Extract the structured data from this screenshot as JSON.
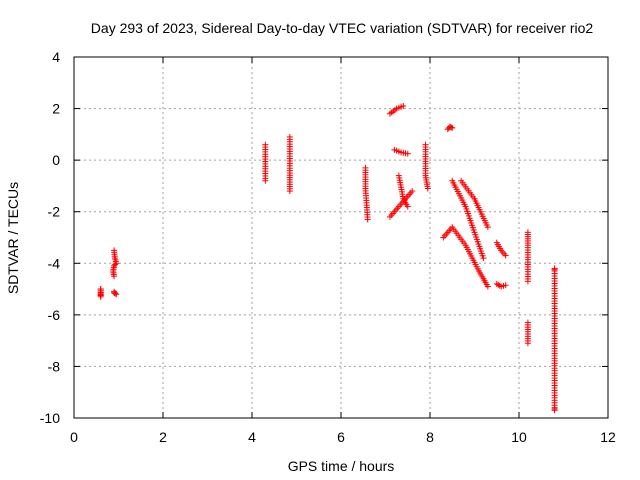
{
  "chart_data": {
    "type": "scatter",
    "title": "Day 293 of 2023, Sidereal Day-to-day VTEC variation (SDTVAR) for receiver rio2",
    "xlabel": "GPS time / hours",
    "ylabel": "SDTVAR / TECUs",
    "xlim": [
      0,
      12
    ],
    "ylim": [
      -10,
      4
    ],
    "x_ticks": [
      "0",
      "2",
      "4",
      "6",
      "8",
      "10",
      "12"
    ],
    "y_ticks": [
      "-10",
      "-8",
      "-6",
      "-4",
      "-2",
      "0",
      "2",
      "4"
    ],
    "grid": true,
    "legend": "none",
    "marker": "+",
    "color": "#ff0000",
    "segments": [
      {
        "name": "seg-01",
        "points": [
          [
            0.6,
            -5.0
          ],
          [
            0.6,
            -5.2
          ],
          [
            0.6,
            -5.3
          ],
          [
            0.6,
            -5.0
          ]
        ]
      },
      {
        "name": "seg-02",
        "points": [
          [
            0.9,
            -3.5
          ],
          [
            0.92,
            -3.8
          ],
          [
            0.95,
            -4.0
          ],
          [
            0.9,
            -4.1
          ],
          [
            0.88,
            -4.3
          ],
          [
            0.9,
            -4.5
          ]
        ]
      },
      {
        "name": "seg-03",
        "points": [
          [
            0.9,
            -5.1
          ],
          [
            0.95,
            -5.2
          ],
          [
            0.9,
            -5.15
          ]
        ]
      },
      {
        "name": "seg-04",
        "points": [
          [
            4.3,
            0.6
          ],
          [
            4.3,
            -0.8
          ]
        ]
      },
      {
        "name": "seg-05",
        "points": [
          [
            4.85,
            0.9
          ],
          [
            4.85,
            -0.5
          ],
          [
            4.85,
            -1.2
          ]
        ]
      },
      {
        "name": "seg-06",
        "points": [
          [
            6.55,
            -0.3
          ],
          [
            6.55,
            -1.1
          ],
          [
            6.6,
            -2.3
          ]
        ]
      },
      {
        "name": "seg-07",
        "points": [
          [
            7.1,
            -2.2
          ],
          [
            7.3,
            -1.8
          ],
          [
            7.5,
            -1.4
          ],
          [
            7.6,
            -1.2
          ]
        ]
      },
      {
        "name": "seg-08",
        "points": [
          [
            7.1,
            1.8
          ],
          [
            7.25,
            2.0
          ],
          [
            7.4,
            2.1
          ]
        ]
      },
      {
        "name": "seg-09",
        "points": [
          [
            7.2,
            0.4
          ],
          [
            7.35,
            0.3
          ],
          [
            7.5,
            0.25
          ]
        ]
      },
      {
        "name": "seg-10",
        "points": [
          [
            7.3,
            -0.6
          ],
          [
            7.4,
            -1.5
          ],
          [
            7.5,
            -1.8
          ]
        ]
      },
      {
        "name": "seg-11",
        "points": [
          [
            7.9,
            0.6
          ],
          [
            7.9,
            -0.6
          ],
          [
            7.95,
            -1.1
          ]
        ]
      },
      {
        "name": "seg-12",
        "points": [
          [
            8.4,
            1.2
          ],
          [
            8.45,
            1.3
          ],
          [
            8.5,
            1.25
          ]
        ]
      },
      {
        "name": "seg-13",
        "points": [
          [
            8.5,
            -0.8
          ],
          [
            8.8,
            -1.8
          ],
          [
            9.0,
            -2.8
          ],
          [
            9.2,
            -3.8
          ]
        ]
      },
      {
        "name": "seg-14",
        "points": [
          [
            8.7,
            -0.8
          ],
          [
            9.0,
            -1.5
          ],
          [
            9.3,
            -2.6
          ]
        ]
      },
      {
        "name": "seg-15",
        "points": [
          [
            8.3,
            -3.0
          ],
          [
            8.5,
            -2.6
          ],
          [
            8.8,
            -3.3
          ],
          [
            9.1,
            -4.3
          ],
          [
            9.3,
            -4.9
          ]
        ]
      },
      {
        "name": "seg-16",
        "points": [
          [
            9.5,
            -3.2
          ],
          [
            9.6,
            -3.5
          ],
          [
            9.7,
            -3.7
          ]
        ]
      },
      {
        "name": "seg-17",
        "points": [
          [
            9.5,
            -4.8
          ],
          [
            9.6,
            -4.9
          ],
          [
            9.7,
            -4.85
          ]
        ]
      },
      {
        "name": "seg-18",
        "points": [
          [
            10.2,
            -2.8
          ],
          [
            10.2,
            -3.3
          ],
          [
            10.2,
            -4.7
          ]
        ]
      },
      {
        "name": "seg-19",
        "points": [
          [
            10.2,
            -6.3
          ],
          [
            10.2,
            -7.1
          ]
        ]
      },
      {
        "name": "seg-20",
        "points": [
          [
            10.8,
            -4.2
          ],
          [
            10.8,
            -4.3
          ],
          [
            10.8,
            -7.4
          ],
          [
            10.8,
            -9.6
          ],
          [
            10.8,
            -9.7
          ]
        ]
      }
    ]
  }
}
